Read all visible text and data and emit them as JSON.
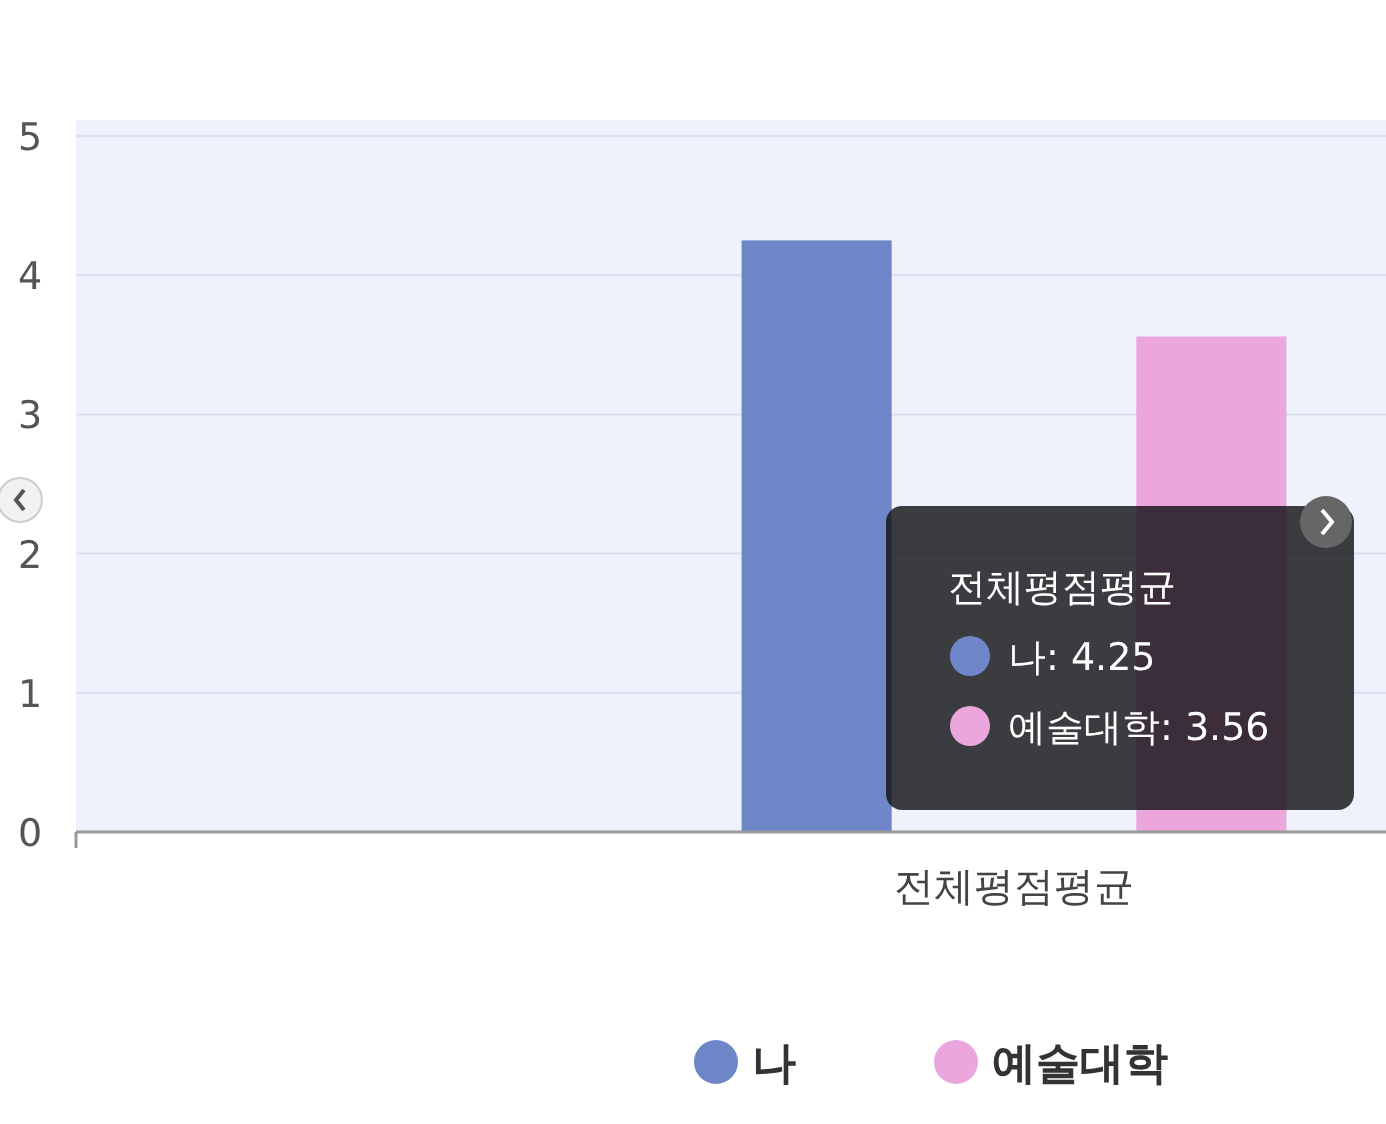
{
  "chart_data": {
    "type": "bar",
    "categories": [
      "전체평점평균"
    ],
    "series": [
      {
        "name": "나",
        "color": "#6f86c9",
        "values": [
          4.25
        ]
      },
      {
        "name": "예술대학",
        "color": "#eba6dd",
        "values": [
          3.56
        ]
      }
    ],
    "ylim": [
      0,
      5
    ],
    "yticks": [
      0,
      1,
      2,
      3,
      4,
      5
    ],
    "grid": "y",
    "legend": "bottom",
    "annotations": [
      "전체평점평균",
      "나: 4.25",
      "예술대학: 3.56"
    ]
  }
}
